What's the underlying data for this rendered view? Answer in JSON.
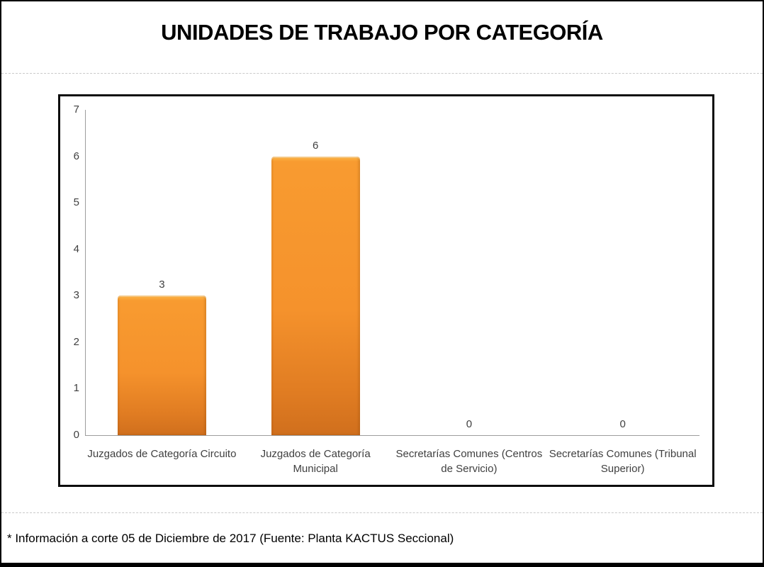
{
  "slide": {
    "title": "UNIDADES DE TRABAJO POR CATEGORÍA",
    "footer_note": "* Información a corte 05 de Diciembre de 2017 (Fuente: Planta KACTUS Seccional)"
  },
  "chart_data": {
    "type": "bar",
    "title": "UNIDADES DE TRABAJO POR CATEGORÍA",
    "categories": [
      "Juzgados de Categoría Circuito",
      "Juzgados de Categoría Municipal",
      "Secretarías Comunes (Centros de Servicio)",
      "Secretarías Comunes (Tribunal Superior)"
    ],
    "values": [
      3,
      6,
      0,
      0
    ],
    "data_labels": [
      "3",
      "6",
      "0",
      "0"
    ],
    "y_ticks": [
      7,
      6,
      5,
      4,
      3,
      2,
      1,
      0
    ],
    "ylim": [
      0,
      7
    ],
    "xlabel": "",
    "ylabel": "",
    "grid": false,
    "legend": false,
    "colors": {
      "bar": "#F89B30",
      "bar_highlight": "#FDB848",
      "bar_bottom": "#D06F1D",
      "axis": "#9D9D9D",
      "labels": "#3F3F3F"
    }
  }
}
